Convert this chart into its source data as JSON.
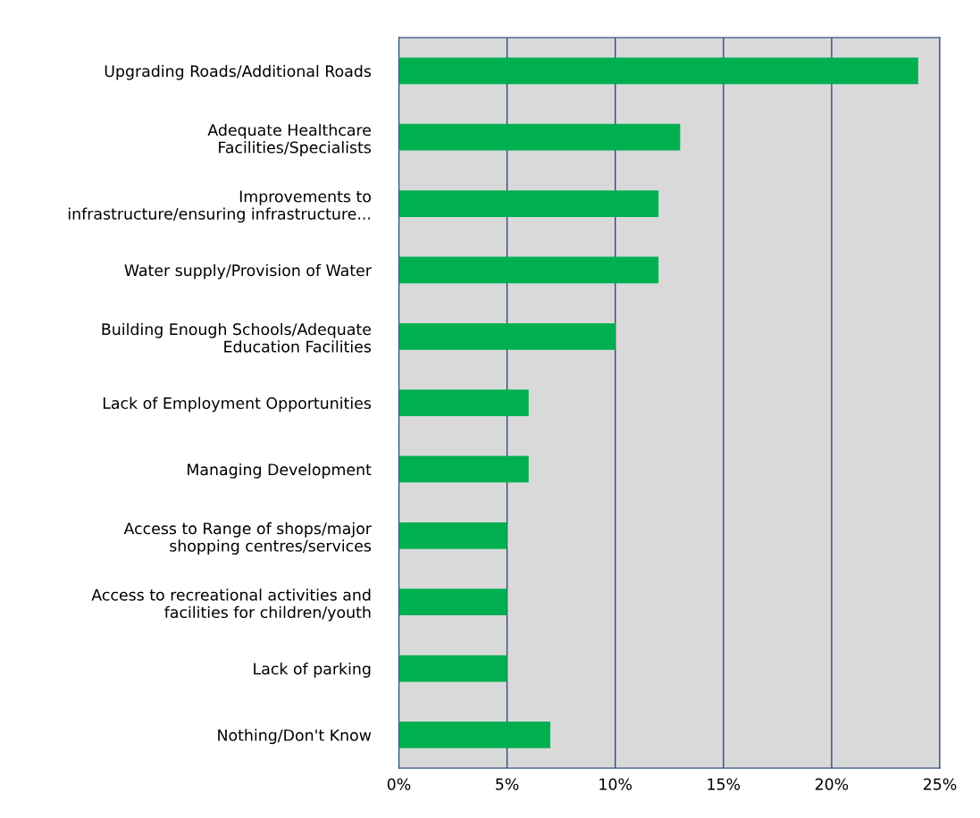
{
  "chart_data": {
    "type": "bar",
    "orientation": "horizontal",
    "categories": [
      "Upgrading Roads/Additional Roads",
      "Adequate Healthcare\nFacilities/Specialists",
      "Improvements to\ninfrastructure/ensuring infrastructure...",
      "Water supply/Provision of Water",
      "Building Enough Schools/Adequate\nEducation Facilities",
      "Lack of Employment Opportunities",
      "Managing Development",
      "Access to Range of shops/major\nshopping centres/services",
      "Access to recreational activities and\nfacilities for children/youth",
      "Lack of parking",
      "Nothing/Don't Know"
    ],
    "values": [
      24,
      13,
      12,
      12,
      10,
      6,
      6,
      5,
      5,
      5,
      7
    ],
    "color": "#00b050",
    "xlim": [
      0,
      25
    ],
    "xticks": [
      {
        "value": 0,
        "label": "0%"
      },
      {
        "value": 5,
        "label": "5%"
      },
      {
        "value": 10,
        "label": "10%"
      },
      {
        "value": 15,
        "label": "15%"
      },
      {
        "value": 20,
        "label": "20%"
      },
      {
        "value": 25,
        "label": "25%"
      }
    ],
    "grid": "x",
    "legend": false
  }
}
